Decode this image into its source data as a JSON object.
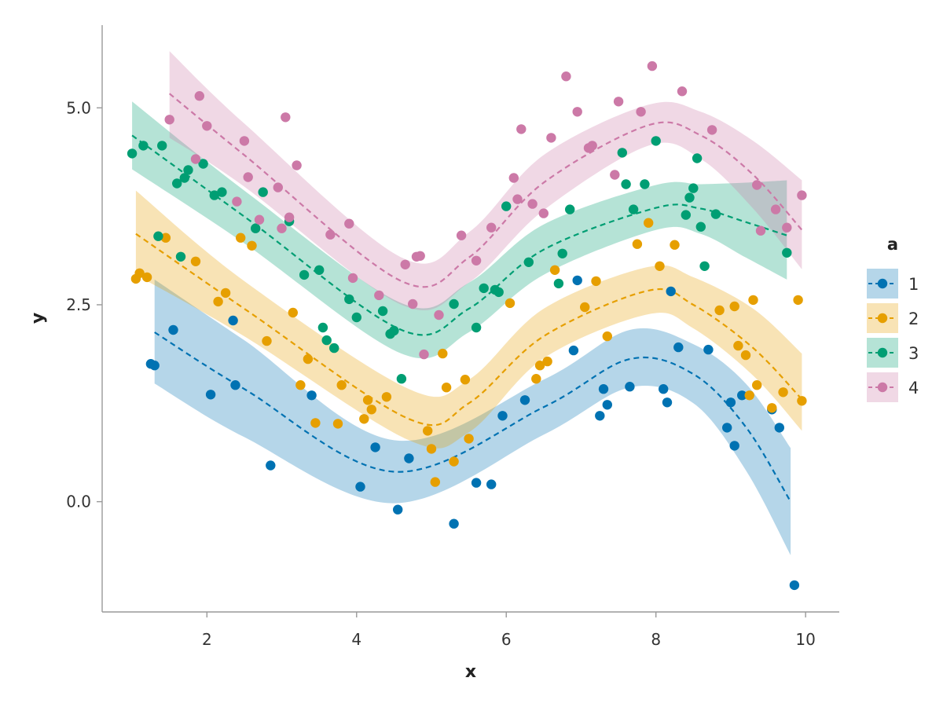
{
  "chart_data": {
    "type": "scatter",
    "title": "",
    "xlabel": "x",
    "ylabel": "y",
    "xlim": [
      0.6,
      10.45
    ],
    "ylim": [
      -1.4,
      6.05
    ],
    "x_ticks": [
      2,
      4,
      6,
      8,
      10
    ],
    "x_tick_labels": [
      "2",
      "4",
      "6",
      "8",
      "10"
    ],
    "y_ticks": [
      0,
      2.5,
      5
    ],
    "y_tick_labels": [
      "0.0",
      "2.5",
      "5.0"
    ],
    "grid": false,
    "legend": {
      "title": "a",
      "placement": "right"
    },
    "series": [
      {
        "name": "1",
        "color": "#0072B2",
        "points": [
          [
            1.3,
            1.73
          ],
          [
            1.55,
            2.18
          ],
          [
            2.05,
            1.36
          ],
          [
            2.35,
            2.3
          ],
          [
            2.38,
            1.48
          ],
          [
            2.85,
            0.46
          ],
          [
            3.4,
            1.35
          ],
          [
            4.05,
            0.19
          ],
          [
            4.25,
            0.69
          ],
          [
            4.55,
            -0.1
          ],
          [
            4.7,
            0.55
          ],
          [
            5.3,
            -0.28
          ],
          [
            5.6,
            0.24
          ],
          [
            5.8,
            0.22
          ],
          [
            5.95,
            1.09
          ],
          [
            6.25,
            1.29
          ],
          [
            6.95,
            2.81
          ],
          [
            6.9,
            1.92
          ],
          [
            7.25,
            1.09
          ],
          [
            7.3,
            1.43
          ],
          [
            7.35,
            1.23
          ],
          [
            7.65,
            1.46
          ],
          [
            8.1,
            1.43
          ],
          [
            8.15,
            1.26
          ],
          [
            8.2,
            2.67
          ],
          [
            8.3,
            1.96
          ],
          [
            8.7,
            1.93
          ],
          [
            8.95,
            0.94
          ],
          [
            9.0,
            1.26
          ],
          [
            9.05,
            0.71
          ],
          [
            9.15,
            1.35
          ],
          [
            9.55,
            1.17
          ],
          [
            9.65,
            0.94
          ],
          [
            9.85,
            -1.06
          ],
          [
            1.25,
            1.75
          ]
        ],
        "fit": [
          [
            1.3,
            2.15
          ],
          [
            2.5,
            1.43
          ],
          [
            4.5,
            0.38
          ],
          [
            6.5,
            1.2
          ],
          [
            7.65,
            1.81
          ],
          [
            8.5,
            1.62
          ],
          [
            9.2,
            0.95
          ],
          [
            9.8,
            0.0
          ]
        ],
        "band": [
          [
            1.3,
            2.82,
            1.5
          ],
          [
            2.5,
            2.05,
            0.82
          ],
          [
            4.5,
            0.78,
            -0.02
          ],
          [
            6.5,
            1.55,
            0.85
          ],
          [
            7.65,
            2.18,
            1.45
          ],
          [
            8.5,
            2.0,
            1.25
          ],
          [
            9.2,
            1.5,
            0.4
          ],
          [
            9.8,
            0.68,
            -0.68
          ]
        ]
      },
      {
        "name": "2",
        "color": "#E69F00",
        "points": [
          [
            1.05,
            2.83
          ],
          [
            1.1,
            2.9
          ],
          [
            1.2,
            2.85
          ],
          [
            1.45,
            3.35
          ],
          [
            1.85,
            3.05
          ],
          [
            2.15,
            2.54
          ],
          [
            2.25,
            2.65
          ],
          [
            2.45,
            3.35
          ],
          [
            2.6,
            3.25
          ],
          [
            2.8,
            2.04
          ],
          [
            3.15,
            2.4
          ],
          [
            3.25,
            1.48
          ],
          [
            3.35,
            1.81
          ],
          [
            3.45,
            1.0
          ],
          [
            3.75,
            0.99
          ],
          [
            3.8,
            1.48
          ],
          [
            4.1,
            1.05
          ],
          [
            4.15,
            1.29
          ],
          [
            4.2,
            1.17
          ],
          [
            4.4,
            1.33
          ],
          [
            4.95,
            0.9
          ],
          [
            5.0,
            0.67
          ],
          [
            5.05,
            0.25
          ],
          [
            5.15,
            1.88
          ],
          [
            5.2,
            1.45
          ],
          [
            5.3,
            0.51
          ],
          [
            5.45,
            1.55
          ],
          [
            5.5,
            0.8
          ],
          [
            6.05,
            2.52
          ],
          [
            6.4,
            1.56
          ],
          [
            6.45,
            1.73
          ],
          [
            6.55,
            1.78
          ],
          [
            6.65,
            2.94
          ],
          [
            7.05,
            2.47
          ],
          [
            7.2,
            2.8
          ],
          [
            7.35,
            2.1
          ],
          [
            7.75,
            3.27
          ],
          [
            7.9,
            3.54
          ],
          [
            8.05,
            2.99
          ],
          [
            8.25,
            3.26
          ],
          [
            8.85,
            2.43
          ],
          [
            9.05,
            2.48
          ],
          [
            9.1,
            1.98
          ],
          [
            9.2,
            1.86
          ],
          [
            9.25,
            1.35
          ],
          [
            9.3,
            2.56
          ],
          [
            9.35,
            1.48
          ],
          [
            9.55,
            1.19
          ],
          [
            9.7,
            1.39
          ],
          [
            9.9,
            2.56
          ],
          [
            9.95,
            1.28
          ]
        ],
        "fit": [
          [
            1.05,
            3.4
          ],
          [
            2.5,
            2.45
          ],
          [
            4.7,
            1.05
          ],
          [
            5.5,
            1.25
          ],
          [
            6.5,
            2.1
          ],
          [
            7.9,
            2.68
          ],
          [
            8.5,
            2.5
          ],
          [
            9.3,
            1.95
          ],
          [
            9.95,
            1.3
          ]
        ],
        "band": [
          [
            1.05,
            3.95,
            2.88
          ],
          [
            2.5,
            2.8,
            2.1
          ],
          [
            4.7,
            1.43,
            0.78
          ],
          [
            5.5,
            1.55,
            0.88
          ],
          [
            6.5,
            2.45,
            1.82
          ],
          [
            7.9,
            2.98,
            2.38
          ],
          [
            8.5,
            2.85,
            2.2
          ],
          [
            9.3,
            2.45,
            1.6
          ],
          [
            9.95,
            1.88,
            0.9
          ]
        ]
      },
      {
        "name": "3",
        "color": "#009E73",
        "points": [
          [
            1.0,
            4.42
          ],
          [
            1.15,
            4.52
          ],
          [
            1.35,
            3.37
          ],
          [
            1.4,
            4.52
          ],
          [
            1.6,
            4.04
          ],
          [
            1.65,
            3.11
          ],
          [
            1.7,
            4.11
          ],
          [
            1.75,
            4.21
          ],
          [
            1.95,
            4.29
          ],
          [
            2.1,
            3.89
          ],
          [
            2.2,
            3.93
          ],
          [
            2.65,
            3.47
          ],
          [
            2.75,
            3.93
          ],
          [
            3.1,
            3.56
          ],
          [
            3.3,
            2.88
          ],
          [
            3.5,
            2.94
          ],
          [
            3.55,
            2.21
          ],
          [
            3.6,
            2.05
          ],
          [
            3.7,
            1.95
          ],
          [
            3.9,
            2.57
          ],
          [
            4.0,
            2.34
          ],
          [
            4.35,
            2.42
          ],
          [
            4.45,
            2.13
          ],
          [
            4.5,
            2.17
          ],
          [
            4.6,
            1.56
          ],
          [
            5.3,
            2.51
          ],
          [
            5.7,
            2.71
          ],
          [
            5.85,
            2.69
          ],
          [
            5.6,
            2.21
          ],
          [
            5.9,
            2.66
          ],
          [
            6.0,
            3.75
          ],
          [
            6.3,
            3.04
          ],
          [
            6.7,
            2.77
          ],
          [
            6.75,
            3.15
          ],
          [
            6.85,
            3.71
          ],
          [
            7.55,
            4.43
          ],
          [
            7.6,
            4.03
          ],
          [
            7.7,
            3.71
          ],
          [
            7.85,
            4.03
          ],
          [
            8.0,
            4.58
          ],
          [
            8.4,
            3.64
          ],
          [
            8.45,
            3.86
          ],
          [
            8.5,
            3.98
          ],
          [
            8.55,
            4.36
          ],
          [
            8.6,
            3.49
          ],
          [
            8.65,
            2.99
          ],
          [
            8.8,
            3.65
          ],
          [
            9.75,
            3.16
          ]
        ],
        "fit": [
          [
            1.0,
            4.65
          ],
          [
            2.5,
            3.62
          ],
          [
            4.6,
            2.18
          ],
          [
            5.5,
            2.45
          ],
          [
            6.5,
            3.2
          ],
          [
            8.0,
            3.73
          ],
          [
            8.6,
            3.72
          ],
          [
            9.2,
            3.55
          ],
          [
            9.75,
            3.38
          ]
        ],
        "band": [
          [
            1.0,
            5.08,
            4.22
          ],
          [
            2.5,
            3.95,
            3.28
          ],
          [
            4.6,
            2.52,
            1.88
          ],
          [
            5.5,
            2.78,
            2.15
          ],
          [
            6.5,
            3.52,
            2.88
          ],
          [
            8.0,
            4.02,
            3.45
          ],
          [
            8.6,
            4.03,
            3.4
          ],
          [
            9.2,
            4.05,
            3.1
          ],
          [
            9.75,
            4.08,
            2.82
          ]
        ]
      },
      {
        "name": "4",
        "color": "#CC79A7",
        "points": [
          [
            1.5,
            4.85
          ],
          [
            1.85,
            4.35
          ],
          [
            1.9,
            5.15
          ],
          [
            2.0,
            4.77
          ],
          [
            2.4,
            3.81
          ],
          [
            2.5,
            4.58
          ],
          [
            2.55,
            4.12
          ],
          [
            2.7,
            3.58
          ],
          [
            2.95,
            3.99
          ],
          [
            3.0,
            3.47
          ],
          [
            3.05,
            4.88
          ],
          [
            3.1,
            3.61
          ],
          [
            3.2,
            4.27
          ],
          [
            3.65,
            3.39
          ],
          [
            3.9,
            3.53
          ],
          [
            3.95,
            2.84
          ],
          [
            4.3,
            2.62
          ],
          [
            4.65,
            3.01
          ],
          [
            4.75,
            2.51
          ],
          [
            4.8,
            3.11
          ],
          [
            4.85,
            3.12
          ],
          [
            4.9,
            1.87
          ],
          [
            5.1,
            2.37
          ],
          [
            5.4,
            3.38
          ],
          [
            5.6,
            3.06
          ],
          [
            5.8,
            3.48
          ],
          [
            6.1,
            4.11
          ],
          [
            6.15,
            3.84
          ],
          [
            6.2,
            4.73
          ],
          [
            6.35,
            3.78
          ],
          [
            6.5,
            3.66
          ],
          [
            6.6,
            4.62
          ],
          [
            6.8,
            5.4
          ],
          [
            6.95,
            4.95
          ],
          [
            7.1,
            4.49
          ],
          [
            7.15,
            4.52
          ],
          [
            7.45,
            4.15
          ],
          [
            7.5,
            5.08
          ],
          [
            7.8,
            4.95
          ],
          [
            7.95,
            5.53
          ],
          [
            8.35,
            5.21
          ],
          [
            8.75,
            4.72
          ],
          [
            9.35,
            4.02
          ],
          [
            9.4,
            3.44
          ],
          [
            9.6,
            3.71
          ],
          [
            9.75,
            3.48
          ],
          [
            9.95,
            3.89
          ]
        ],
        "fit": [
          [
            1.5,
            5.18
          ],
          [
            2.5,
            4.4
          ],
          [
            4.6,
            2.8
          ],
          [
            5.5,
            3.1
          ],
          [
            6.5,
            4.05
          ],
          [
            7.9,
            4.78
          ],
          [
            8.6,
            4.65
          ],
          [
            9.3,
            4.15
          ],
          [
            9.95,
            3.45
          ]
        ],
        "band": [
          [
            1.5,
            5.72,
            4.62
          ],
          [
            2.5,
            4.8,
            4.0
          ],
          [
            4.6,
            3.1,
            2.5
          ],
          [
            5.5,
            3.42,
            2.78
          ],
          [
            6.5,
            4.4,
            3.7
          ],
          [
            7.9,
            5.04,
            4.52
          ],
          [
            8.6,
            4.95,
            4.35
          ],
          [
            9.3,
            4.58,
            3.72
          ],
          [
            9.95,
            4.08,
            2.95
          ]
        ]
      }
    ]
  }
}
